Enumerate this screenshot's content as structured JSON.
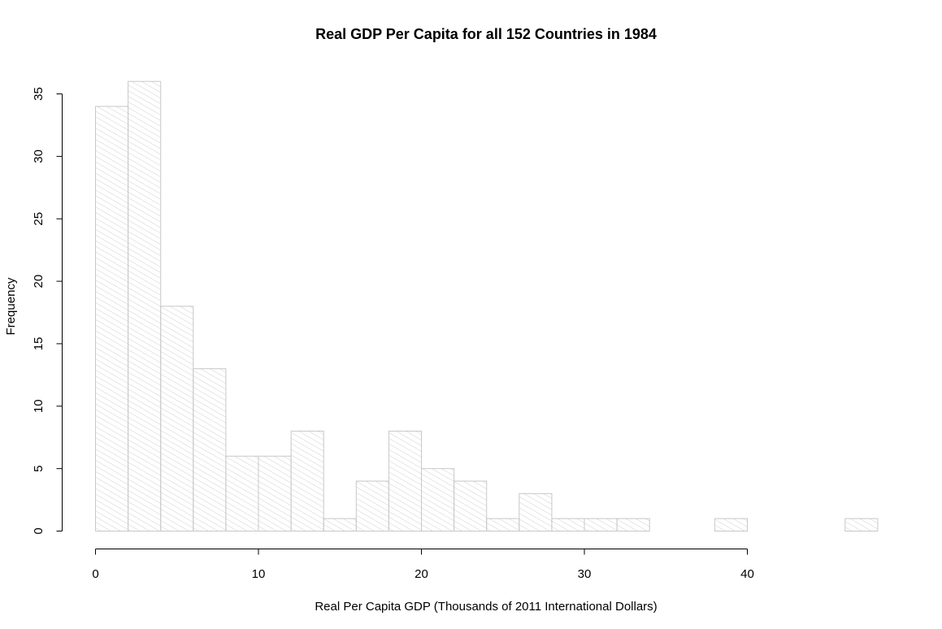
{
  "chart_data": {
    "type": "bar",
    "title": "Real GDP Per Capita for all 152 Countries in 1984",
    "xlabel": "Real Per Capita GDP (Thousands of 2011 International Dollars)",
    "ylabel": "Frequency",
    "bin_width": 2,
    "bin_edges_start": 0,
    "values": [
      34,
      36,
      18,
      13,
      6,
      6,
      8,
      1,
      4,
      8,
      5,
      4,
      1,
      3,
      1,
      1,
      1,
      0,
      0,
      1,
      0,
      0,
      0,
      1
    ],
    "xlim": [
      0,
      48
    ],
    "ylim": [
      0,
      36
    ],
    "x_ticks": [
      0,
      10,
      20,
      30,
      40
    ],
    "y_ticks": [
      0,
      5,
      10,
      15,
      20,
      25,
      30,
      35
    ],
    "bar_style": "hatched",
    "bar_color": "#c8c8c8",
    "grid": false
  }
}
